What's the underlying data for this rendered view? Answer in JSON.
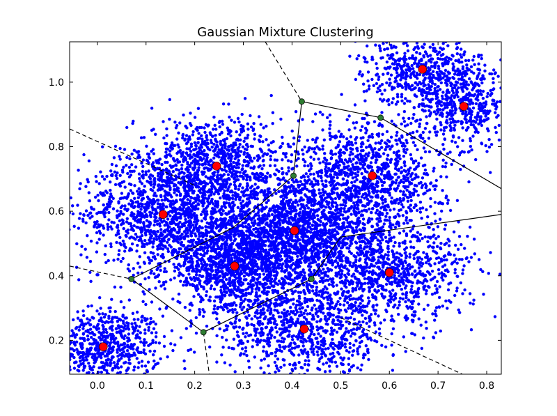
{
  "chart_data": {
    "type": "scatter",
    "title": "Gaussian Mixture Clustering",
    "xlabel": "",
    "ylabel": "",
    "xlim": [
      -0.057,
      0.83
    ],
    "ylim": [
      0.095,
      1.125
    ],
    "xticks": [
      "0.0",
      "0.1",
      "0.2",
      "0.3",
      "0.4",
      "0.5",
      "0.6",
      "0.7",
      "0.8"
    ],
    "yticks": [
      "0.2",
      "0.4",
      "0.6",
      "0.8",
      "1.0"
    ],
    "grid": false,
    "legend": "none",
    "colors": {
      "points": "#0000ff",
      "centers": "#ff0000",
      "vertices": "#2e7d32",
      "edges": "#000000"
    },
    "clusters": [
      {
        "mean": [
          0.012,
          0.18
        ],
        "std": [
          0.06,
          0.06
        ],
        "n": 700
      },
      {
        "mean": [
          0.135,
          0.59
        ],
        "std": [
          0.085,
          0.085
        ],
        "n": 1100
      },
      {
        "mean": [
          0.245,
          0.74
        ],
        "std": [
          0.085,
          0.075
        ],
        "n": 1000
      },
      {
        "mean": [
          0.282,
          0.43
        ],
        "std": [
          0.07,
          0.07
        ],
        "n": 1200
      },
      {
        "mean": [
          0.405,
          0.54
        ],
        "std": [
          0.085,
          0.085
        ],
        "n": 1700
      },
      {
        "mean": [
          0.425,
          0.235
        ],
        "std": [
          0.085,
          0.08
        ],
        "n": 900
      },
      {
        "mean": [
          0.565,
          0.71
        ],
        "std": [
          0.075,
          0.085
        ],
        "n": 1000
      },
      {
        "mean": [
          0.6,
          0.41
        ],
        "std": [
          0.085,
          0.08
        ],
        "n": 900
      },
      {
        "mean": [
          0.668,
          1.04
        ],
        "std": [
          0.06,
          0.05
        ],
        "n": 500
      },
      {
        "mean": [
          0.753,
          0.925
        ],
        "std": [
          0.055,
          0.06
        ],
        "n": 500
      }
    ],
    "centers": [
      {
        "x": 0.012,
        "y": 0.18
      },
      {
        "x": 0.135,
        "y": 0.59
      },
      {
        "x": 0.245,
        "y": 0.74
      },
      {
        "x": 0.282,
        "y": 0.43
      },
      {
        "x": 0.405,
        "y": 0.54
      },
      {
        "x": 0.425,
        "y": 0.235
      },
      {
        "x": 0.565,
        "y": 0.71
      },
      {
        "x": 0.6,
        "y": 0.41
      },
      {
        "x": 0.668,
        "y": 1.04
      },
      {
        "x": 0.753,
        "y": 0.925
      }
    ],
    "vertices": [
      {
        "x": 0.07,
        "y": 0.39
      },
      {
        "x": 0.218,
        "y": 0.225
      },
      {
        "x": 0.42,
        "y": 0.94
      },
      {
        "x": 0.582,
        "y": 0.89
      },
      {
        "x": 0.403,
        "y": 0.71
      },
      {
        "x": 0.44,
        "y": 0.39
      }
    ],
    "edges_solid": [
      [
        [
          0.07,
          0.39
        ],
        [
          0.218,
          0.225
        ]
      ],
      [
        [
          0.07,
          0.39
        ],
        [
          0.28,
          0.55
        ]
      ],
      [
        [
          0.218,
          0.225
        ],
        [
          0.44,
          0.39
        ]
      ],
      [
        [
          0.44,
          0.39
        ],
        [
          0.5,
          0.52
        ]
      ],
      [
        [
          0.28,
          0.55
        ],
        [
          0.403,
          0.71
        ]
      ],
      [
        [
          0.403,
          0.71
        ],
        [
          0.42,
          0.94
        ]
      ],
      [
        [
          0.42,
          0.94
        ],
        [
          0.582,
          0.89
        ]
      ],
      [
        [
          0.582,
          0.89
        ],
        [
          0.83,
          0.67
        ]
      ],
      [
        [
          0.5,
          0.52
        ],
        [
          0.83,
          0.59
        ]
      ]
    ],
    "edges_dashed": [
      [
        [
          -0.057,
          0.43
        ],
        [
          0.07,
          0.39
        ]
      ],
      [
        [
          -0.057,
          0.855
        ],
        [
          0.2,
          0.68
        ]
      ],
      [
        [
          0.345,
          1.125
        ],
        [
          0.42,
          0.94
        ]
      ],
      [
        [
          0.218,
          0.225
        ],
        [
          0.23,
          0.095
        ]
      ],
      [
        [
          0.5,
          0.27
        ],
        [
          0.75,
          0.095
        ]
      ]
    ]
  }
}
